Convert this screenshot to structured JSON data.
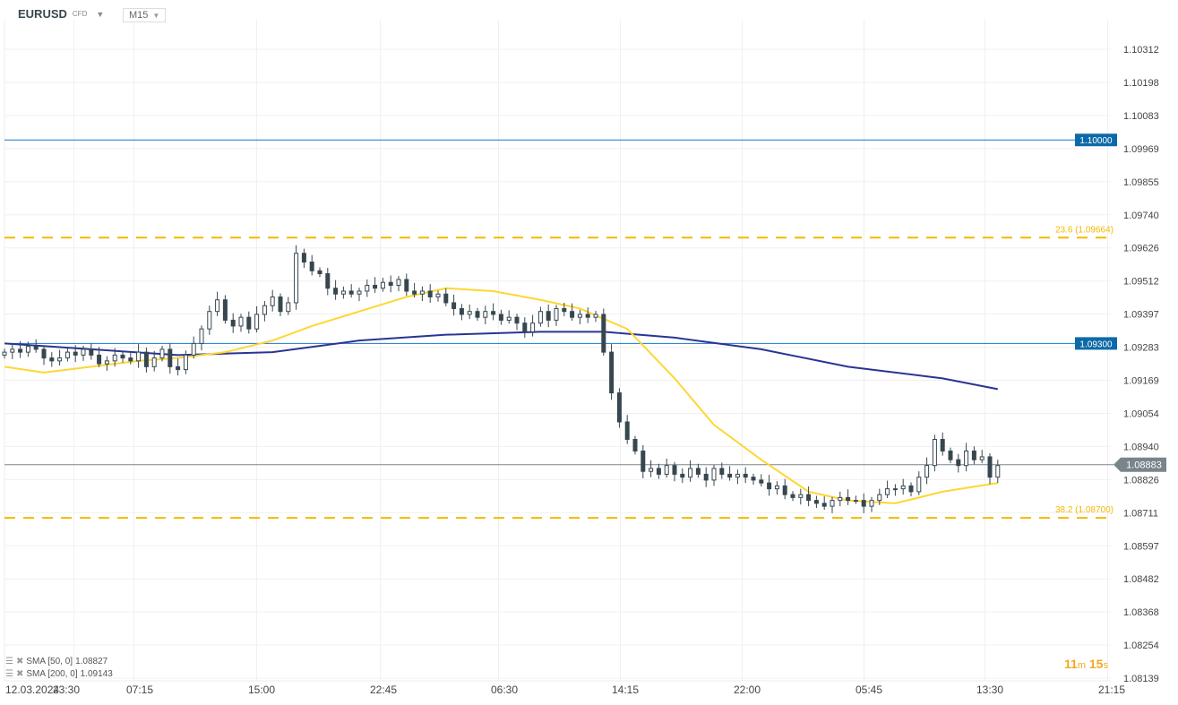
{
  "header": {
    "symbol": "EURUSD",
    "type": "CFD",
    "timeframe": "M15"
  },
  "indicators": [
    {
      "label": "SMA [50, 0]",
      "value": "1.08827",
      "color": "#ffd633"
    },
    {
      "label": "SMA [200, 0]",
      "value": "1.09143",
      "color": "#283593"
    }
  ],
  "timer": {
    "minutes": "11",
    "m": "m",
    "seconds": "15",
    "s": "s"
  },
  "chart_data": {
    "type": "candlestick",
    "symbol": "EURUSD",
    "timeframe": "M15",
    "y_ticks": [
      "1.10312",
      "1.10198",
      "1.10083",
      "1.09969",
      "1.09855",
      "1.09740",
      "1.09626",
      "1.09512",
      "1.09397",
      "1.09283",
      "1.09169",
      "1.09054",
      "1.08940",
      "1.08826",
      "1.08711",
      "1.08597",
      "1.08482",
      "1.08368",
      "1.08254",
      "1.08139"
    ],
    "ylim": [
      1.08139,
      1.10312
    ],
    "x_ticks": [
      "12.03.2024",
      "23:30",
      "07:15",
      "15:00",
      "22:45",
      "06:30",
      "14:15",
      "22:00",
      "05:45",
      "13:30",
      "21:15"
    ],
    "grid": true,
    "closes": [
      1.0927,
      1.0928,
      1.0927,
      1.0929,
      1.0928,
      1.0925,
      1.0924,
      1.0925,
      1.0927,
      1.0926,
      1.0928,
      1.0926,
      1.0923,
      1.0924,
      1.0926,
      1.0925,
      1.0924,
      1.0927,
      1.0922,
      1.0925,
      1.0928,
      1.0922,
      1.0921,
      1.0926,
      1.093,
      1.0935,
      1.0941,
      1.0945,
      1.0938,
      1.0936,
      1.0939,
      1.0935,
      1.094,
      1.0943,
      1.0946,
      1.0941,
      1.0944,
      1.0961,
      1.0958,
      1.0955,
      1.0954,
      1.0949,
      1.0947,
      1.0948,
      1.0947,
      1.0948,
      1.095,
      1.0949,
      1.0951,
      1.095,
      1.0952,
      1.0948,
      1.0947,
      1.0948,
      1.0946,
      1.0947,
      1.0944,
      1.0942,
      1.094,
      1.0941,
      1.0939,
      1.0941,
      1.094,
      1.0938,
      1.0939,
      1.0937,
      1.0934,
      1.0937,
      1.0941,
      1.0938,
      1.0942,
      1.0941,
      1.0939,
      1.094,
      1.0939,
      1.094,
      1.0927,
      1.0913,
      1.0903,
      1.0897,
      1.0893,
      1.0886,
      1.0887,
      1.0885,
      1.0888,
      1.0885,
      1.0884,
      1.0887,
      1.0885,
      1.0883,
      1.0887,
      1.0885,
      1.0884,
      1.0885,
      1.0884,
      1.0883,
      1.0882,
      1.088,
      1.0881,
      1.0878,
      1.0877,
      1.0878,
      1.0876,
      1.0875,
      1.0874,
      1.0876,
      1.0877,
      1.0876,
      1.0876,
      1.0874,
      1.0876,
      1.0878,
      1.088,
      1.088,
      1.0881,
      1.0879,
      1.0884,
      1.0888,
      1.0897,
      1.0893,
      1.089,
      1.0888,
      1.0893,
      1.089,
      1.0891,
      1.0884,
      1.0888
    ],
    "sma50": [
      [
        0,
        1.0922
      ],
      [
        5,
        1.092
      ],
      [
        11,
        1.0922
      ],
      [
        17,
        1.0924
      ],
      [
        22,
        1.0925
      ],
      [
        28,
        1.0927
      ],
      [
        34,
        1.0931
      ],
      [
        39,
        1.0936
      ],
      [
        45,
        1.0941
      ],
      [
        51,
        1.0946
      ],
      [
        56,
        1.0949
      ],
      [
        62,
        1.0948
      ],
      [
        68,
        1.0945
      ],
      [
        73,
        1.0942
      ],
      [
        79,
        1.0935
      ],
      [
        85,
        1.0918
      ],
      [
        90,
        1.0902
      ],
      [
        96,
        1.089
      ],
      [
        102,
        1.0879
      ],
      [
        107,
        1.0876
      ],
      [
        113,
        1.0875
      ],
      [
        119,
        1.0879
      ],
      [
        126,
        1.0882
      ]
    ],
    "sma200": [
      [
        0,
        1.093
      ],
      [
        11,
        1.0928
      ],
      [
        22,
        1.0926
      ],
      [
        34,
        1.0927
      ],
      [
        45,
        1.0931
      ],
      [
        56,
        1.0933
      ],
      [
        68,
        1.0934
      ],
      [
        76,
        1.0934
      ],
      [
        85,
        1.0932
      ],
      [
        96,
        1.0928
      ],
      [
        107,
        1.0922
      ],
      [
        119,
        1.0918
      ],
      [
        126,
        1.09143
      ]
    ],
    "levels": [
      {
        "price": 1.1,
        "label": "1.10000",
        "style": "solid",
        "color": "#1976d2"
      },
      {
        "price": 1.093,
        "label": "1.09300",
        "style": "solid",
        "color": "#1976d2"
      }
    ],
    "fib": [
      {
        "price": 1.09664,
        "label": "23.6 (1.09664)",
        "color": "#f5b800"
      },
      {
        "price": 1.087,
        "label": "38.2 (1.08700)",
        "color": "#f5b800"
      }
    ],
    "current_price": {
      "price": 1.08883,
      "label": "1.08883",
      "color": "#78858b"
    },
    "up_color": "#ffffff",
    "down_color": "#37474f"
  }
}
